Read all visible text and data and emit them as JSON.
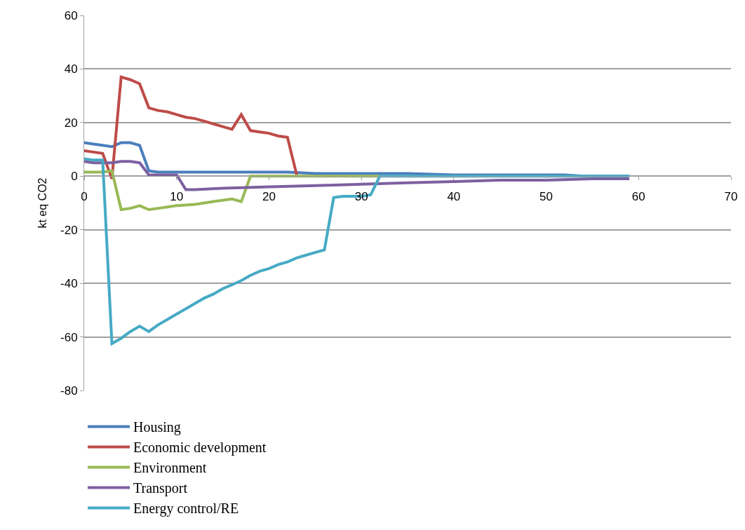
{
  "chart_data": {
    "type": "line",
    "ylabel": "kt eq CO2",
    "xlim": [
      0,
      70
    ],
    "xticks": [
      0,
      10,
      20,
      30,
      40,
      50,
      60,
      70
    ],
    "ylim": [
      -80,
      60
    ],
    "yticks": [
      -80,
      -60,
      -40,
      -20,
      0,
      20,
      40,
      60
    ],
    "grid": "y",
    "legend": "bottom",
    "marker": "none",
    "line_style": "solid",
    "series": [
      {
        "name": "Housing",
        "color": "#4a7ebb",
        "x": [
          0,
          1,
          2,
          3,
          4,
          5,
          6,
          7,
          8,
          10,
          15,
          22,
          25,
          30,
          35,
          40,
          45,
          52,
          54,
          59
        ],
        "values": [
          12.5,
          12,
          11.5,
          11,
          12.5,
          12.5,
          11.5,
          2,
          1.5,
          1.5,
          1.5,
          1.5,
          1,
          1,
          1,
          0.5,
          0.5,
          0.5,
          0,
          0
        ]
      },
      {
        "name": "Economic development",
        "color": "#be4b48",
        "x": [
          0,
          1,
          2,
          3,
          4,
          5,
          6,
          7,
          8,
          9,
          10,
          11,
          12,
          13,
          14,
          15,
          16,
          17,
          18,
          19,
          20,
          21,
          22,
          23
        ],
        "values": [
          9.5,
          9,
          8.5,
          -1,
          37,
          36,
          34.5,
          25.5,
          24.5,
          24,
          23,
          22,
          21.5,
          20.5,
          19.5,
          18.5,
          17.5,
          23,
          17,
          16.5,
          16,
          15,
          14.5,
          0.5
        ]
      },
      {
        "name": "Environment",
        "color": "#98b954",
        "x": [
          0,
          1,
          2,
          3,
          4,
          5,
          6,
          7,
          8,
          9,
          10,
          12,
          14,
          16,
          17,
          18,
          20,
          25,
          32
        ],
        "values": [
          1.5,
          1.5,
          1.5,
          2,
          -12.5,
          -12,
          -11,
          -12.5,
          -12,
          -11.5,
          -11,
          -10.5,
          -9.5,
          -8.5,
          -9.5,
          0,
          0,
          0,
          0
        ]
      },
      {
        "name": "Transport",
        "color": "#7d60a0",
        "x": [
          0,
          1,
          2,
          3,
          4,
          5,
          6,
          7,
          8,
          9,
          10,
          11,
          12,
          15,
          20,
          25,
          30,
          35,
          40,
          45,
          50,
          55,
          59
        ],
        "values": [
          5.5,
          5,
          5,
          5,
          5.5,
          5.5,
          5,
          0.5,
          0.5,
          0.5,
          0.5,
          -5,
          -5,
          -4.5,
          -4,
          -3.5,
          -3,
          -2.5,
          -2,
          -1.5,
          -1.5,
          -1,
          -1
        ]
      },
      {
        "name": "Energy control/RE",
        "color": "#46aac5",
        "x": [
          0,
          1,
          2,
          3,
          4,
          5,
          6,
          7,
          8,
          9,
          10,
          11,
          12,
          13,
          14,
          15,
          16,
          17,
          18,
          19,
          20,
          21,
          22,
          23,
          24,
          25,
          26,
          27,
          28,
          29,
          30,
          31,
          32,
          40,
          50,
          59
        ],
        "values": [
          6.5,
          6,
          6,
          -62.5,
          -60.5,
          -58,
          -56,
          -58,
          -55.5,
          -53.5,
          -51.5,
          -49.5,
          -47.5,
          -45.5,
          -44,
          -42,
          -40.5,
          -39,
          -37,
          -35.5,
          -34.5,
          -33,
          -32,
          -30.5,
          -29.5,
          -28.5,
          -27.5,
          -8,
          -7.5,
          -7.5,
          -7.5,
          -7,
          0,
          0,
          0,
          0
        ]
      }
    ]
  }
}
